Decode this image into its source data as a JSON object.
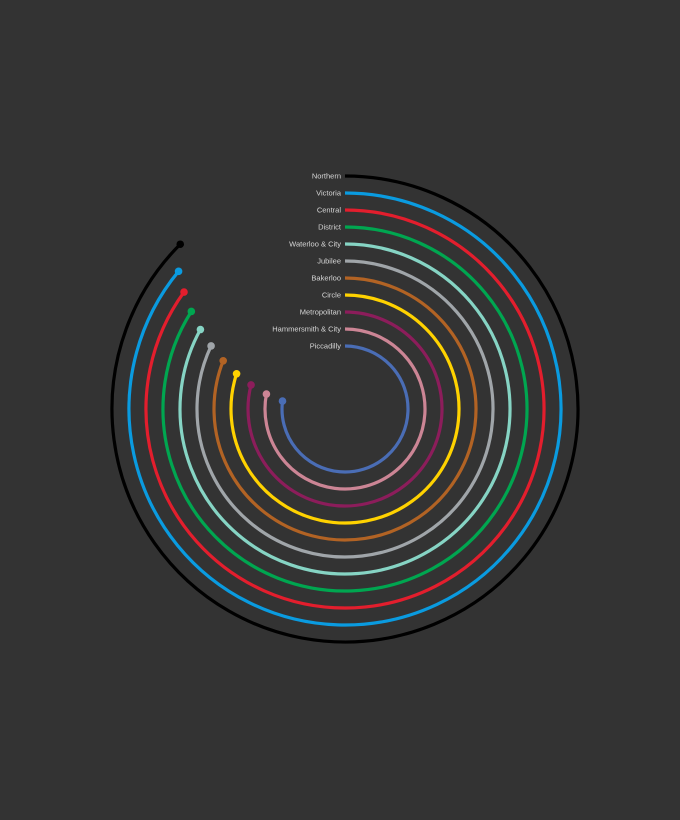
{
  "background": "#333333",
  "chart_data": {
    "type": "radial-bar",
    "title": "",
    "series": [
      {
        "name": "Northern",
        "color": "#000000",
        "value": 0.875
      },
      {
        "name": "Victoria",
        "color": "#0a9be0",
        "value": 0.86
      },
      {
        "name": "Central",
        "color": "#e31e2d",
        "value": 0.85
      },
      {
        "name": "District",
        "color": "#00a650",
        "value": 0.84
      },
      {
        "name": "Waterloo & City",
        "color": "#86d4c4",
        "value": 0.83
      },
      {
        "name": "Jubilee",
        "color": "#a0a5a9",
        "value": 0.82
      },
      {
        "name": "Bakerloo",
        "color": "#b26324",
        "value": 0.81
      },
      {
        "name": "Circle",
        "color": "#ffd200",
        "value": 0.8
      },
      {
        "name": "Metropolitan",
        "color": "#8c1d5b",
        "value": 0.79
      },
      {
        "name": "Hammersmith & City",
        "color": "#cc8595",
        "value": 0.78
      },
      {
        "name": "Piccadilly",
        "color": "#4a6db5",
        "value": 0.77
      }
    ],
    "value_unit": "fraction of full circle",
    "legend": "labels at arc start"
  }
}
